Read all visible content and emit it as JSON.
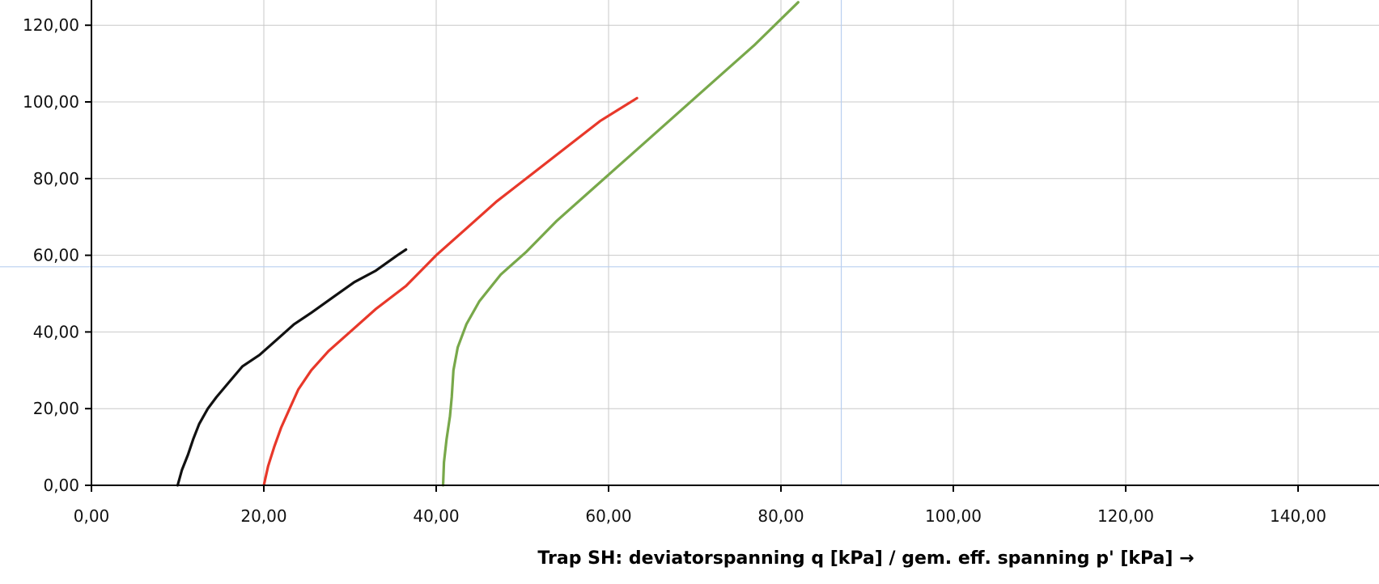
{
  "chart_data": {
    "type": "line",
    "xlabel": "Trap SH: deviatorspanning q [kPa] / gem. eff. spanning p' [kPa] →",
    "ylabel": "",
    "xlim": [
      0,
      150
    ],
    "ylim": [
      0,
      126
    ],
    "x_ticks": [
      0,
      20,
      40,
      60,
      80,
      100,
      120,
      140
    ],
    "y_ticks": [
      0,
      20,
      40,
      60,
      80,
      100,
      120
    ],
    "x_tick_labels": [
      "0,00",
      "20,00",
      "40,00",
      "60,00",
      "80,00",
      "100,00",
      "120,00",
      "140,00"
    ],
    "y_tick_labels": [
      "0,00",
      "20,00",
      "40,00",
      "60,00",
      "80,00",
      "100,00",
      "120,00"
    ],
    "grid": true,
    "crosshair": {
      "x": 87,
      "y": 57
    },
    "series": [
      {
        "color": "#111111",
        "x": [
          10.0,
          10.5,
          11.2,
          11.8,
          12.5,
          13.5,
          14.5,
          16.0,
          17.5,
          19.5,
          21.5,
          23.5,
          25.5,
          28.0,
          30.5,
          33.0,
          35.5,
          36.5
        ],
        "y": [
          0,
          4,
          8,
          12,
          16,
          20,
          23,
          27,
          31,
          34,
          38,
          42,
          45,
          49,
          53,
          56,
          60,
          61.5
        ]
      },
      {
        "color": "#e8382a",
        "x": [
          20.0,
          20.5,
          21.2,
          22.0,
          23.0,
          24.0,
          25.5,
          27.5,
          30.0,
          33.0,
          36.5,
          40.0,
          43.5,
          47.0,
          51.0,
          55.0,
          59.0,
          63.3
        ],
        "y": [
          0,
          5,
          10,
          15,
          20,
          25,
          30,
          35,
          40,
          46,
          52,
          60,
          67,
          74,
          81,
          88,
          95,
          101
        ]
      },
      {
        "color": "#78a84a",
        "x": [
          40.8,
          40.9,
          41.2,
          41.6,
          41.8,
          42.0,
          42.5,
          43.5,
          45.0,
          47.5,
          50.5,
          54.0,
          58.0,
          62.5,
          67.0,
          72.0,
          77.0,
          82.0
        ],
        "y": [
          0,
          6,
          12,
          18,
          23,
          30,
          36,
          42,
          48,
          55,
          61,
          69,
          77,
          86,
          95,
          105,
          115,
          126
        ]
      }
    ]
  }
}
